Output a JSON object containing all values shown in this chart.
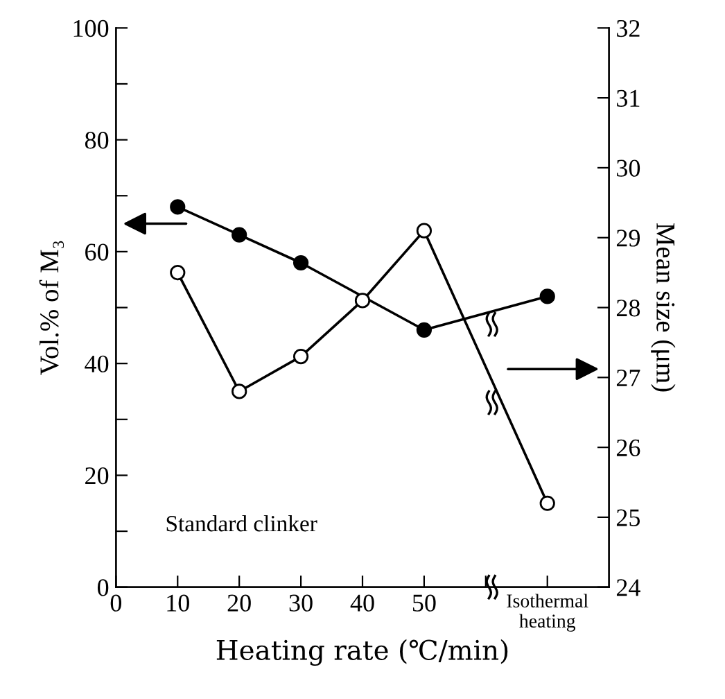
{
  "chart_data": {
    "type": "line",
    "xlabel": "Heating rate (℃/min)",
    "ylabel": "Vol.% of M₃",
    "y2label": "Mean size (μm)",
    "x": [
      10,
      20,
      30,
      50,
      70
    ],
    "series": [
      {
        "color": "#000000",
        "values": [
          68,
          63,
          58,
          46,
          52
        ]
      },
      {
        "color": "#000000",
        "axis": "y2",
        "x": [
          10,
          20,
          30,
          40,
          50,
          70
        ],
        "values": [
          28.5,
          26.8,
          27.3,
          28.1,
          29.1,
          25.2
        ]
      }
    ],
    "xlim": [
      0,
      80
    ],
    "xticks": [
      0,
      10,
      20,
      30,
      40,
      50,
      {
        "value": 60,
        "label": null
      },
      {
        "value": 70,
        "label": "Isothermal\nheating"
      }
    ],
    "ylim": [
      0,
      100
    ],
    "yticks": [
      0,
      {
        "value": 10,
        "label": null
      },
      20,
      {
        "value": 30,
        "label": null
      },
      40,
      {
        "value": 50,
        "label": null
      },
      60,
      {
        "value": 70,
        "label": null
      },
      80,
      {
        "value": 90,
        "label": null
      },
      100
    ],
    "y2lim": [
      24,
      32
    ],
    "y2ticks": [
      24,
      25,
      26,
      27,
      28,
      29,
      30,
      31,
      32
    ],
    "annotations": [
      "Standard clinker"
    ],
    "marker": "circle",
    "line_style": "solid",
    "grid": false,
    "legend": false
  }
}
